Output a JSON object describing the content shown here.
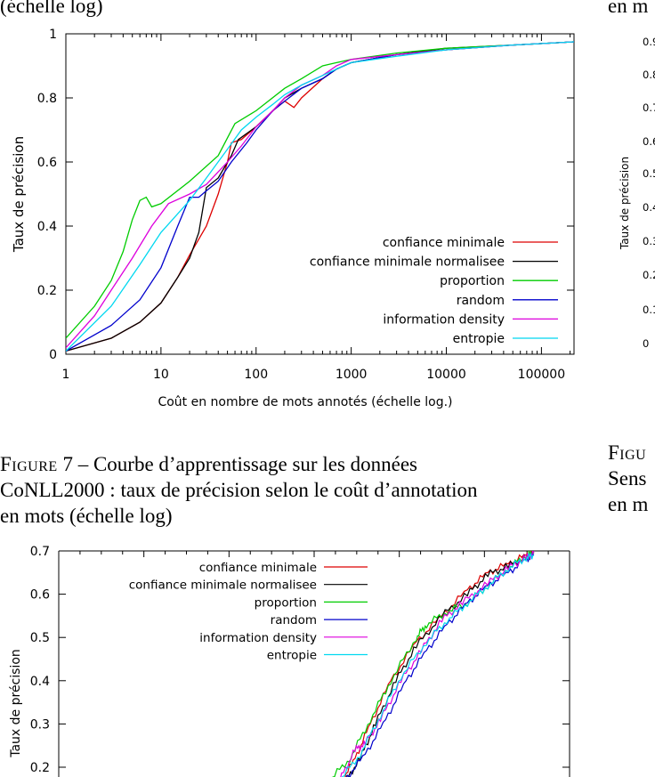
{
  "top_left_cut": "(échelle log)",
  "top_right_cut": "en m",
  "figure7_caption": {
    "label": "Figure",
    "number": "7",
    "line1": "– Courbe d’apprentissage sur les données",
    "line2": "CoNLL2000 : taux de précision selon le coût d’annotation",
    "line3": "en mots (échelle log)"
  },
  "right_caption_cut": {
    "label": "Figu",
    "line2": "Sens",
    "line3": "en m"
  },
  "chart_data": [
    {
      "type": "line",
      "title": "",
      "xlabel": "Coût en nombre de mots annotés (échelle log.)",
      "ylabel": "Taux de précision",
      "xscale": "log",
      "xlim": [
        1,
        220000
      ],
      "ylim": [
        0,
        1
      ],
      "xticks": [
        1,
        10,
        100,
        1000,
        10000,
        100000
      ],
      "xtick_labels": [
        "1",
        "10",
        "100",
        "1000",
        "10000",
        "100000"
      ],
      "yticks": [
        0,
        0.2,
        0.4,
        0.6,
        0.8,
        1
      ],
      "ytick_labels": [
        "0",
        "0.2",
        "0.4",
        "0.6",
        "0.8",
        "1"
      ],
      "legend_position": "bottom-right",
      "series": [
        {
          "name": "confiance minimale",
          "color": "#dd0000",
          "points": [
            [
              1,
              0.01
            ],
            [
              3,
              0.05
            ],
            [
              6,
              0.1
            ],
            [
              10,
              0.16
            ],
            [
              15,
              0.24
            ],
            [
              20,
              0.31
            ],
            [
              30,
              0.4
            ],
            [
              40,
              0.5
            ],
            [
              50,
              0.6
            ],
            [
              55,
              0.66
            ],
            [
              70,
              0.67
            ],
            [
              100,
              0.71
            ],
            [
              150,
              0.76
            ],
            [
              200,
              0.79
            ],
            [
              250,
              0.77
            ],
            [
              300,
              0.8
            ],
            [
              500,
              0.86
            ],
            [
              700,
              0.89
            ],
            [
              1000,
              0.91
            ],
            [
              3000,
              0.935
            ],
            [
              10000,
              0.95
            ],
            [
              50000,
              0.965
            ],
            [
              220000,
              0.975
            ]
          ]
        },
        {
          "name": "confiance minimale normalisee",
          "color": "#000000",
          "points": [
            [
              1,
              0.01
            ],
            [
              3,
              0.05
            ],
            [
              6,
              0.1
            ],
            [
              10,
              0.16
            ],
            [
              15,
              0.24
            ],
            [
              20,
              0.3
            ],
            [
              25,
              0.38
            ],
            [
              30,
              0.52
            ],
            [
              40,
              0.55
            ],
            [
              55,
              0.62
            ],
            [
              65,
              0.67
            ],
            [
              100,
              0.71
            ],
            [
              150,
              0.76
            ],
            [
              200,
              0.8
            ],
            [
              300,
              0.83
            ],
            [
              500,
              0.86
            ],
            [
              700,
              0.89
            ],
            [
              1000,
              0.91
            ],
            [
              3000,
              0.935
            ],
            [
              10000,
              0.955
            ],
            [
              50000,
              0.965
            ],
            [
              220000,
              0.975
            ]
          ]
        },
        {
          "name": "proportion",
          "color": "#00cc00",
          "points": [
            [
              1,
              0.05
            ],
            [
              2,
              0.15
            ],
            [
              3,
              0.23
            ],
            [
              4,
              0.32
            ],
            [
              5,
              0.42
            ],
            [
              6,
              0.48
            ],
            [
              7,
              0.49
            ],
            [
              8,
              0.46
            ],
            [
              10,
              0.47
            ],
            [
              20,
              0.54
            ],
            [
              40,
              0.62
            ],
            [
              60,
              0.72
            ],
            [
              100,
              0.76
            ],
            [
              200,
              0.83
            ],
            [
              300,
              0.86
            ],
            [
              500,
              0.9
            ],
            [
              700,
              0.91
            ],
            [
              1000,
              0.92
            ],
            [
              3000,
              0.94
            ],
            [
              10000,
              0.955
            ],
            [
              50000,
              0.965
            ],
            [
              220000,
              0.975
            ]
          ]
        },
        {
          "name": "random",
          "color": "#0000cc",
          "points": [
            [
              1,
              0.01
            ],
            [
              3,
              0.09
            ],
            [
              6,
              0.17
            ],
            [
              10,
              0.27
            ],
            [
              15,
              0.4
            ],
            [
              20,
              0.49
            ],
            [
              25,
              0.49
            ],
            [
              30,
              0.51
            ],
            [
              40,
              0.54
            ],
            [
              55,
              0.6
            ],
            [
              80,
              0.66
            ],
            [
              100,
              0.7
            ],
            [
              150,
              0.76
            ],
            [
              200,
              0.79
            ],
            [
              300,
              0.83
            ],
            [
              500,
              0.86
            ],
            [
              700,
              0.89
            ],
            [
              1000,
              0.91
            ],
            [
              3000,
              0.935
            ],
            [
              10000,
              0.95
            ],
            [
              50000,
              0.965
            ],
            [
              220000,
              0.975
            ]
          ]
        },
        {
          "name": "information density",
          "color": "#dd00dd",
          "points": [
            [
              1,
              0.02
            ],
            [
              2,
              0.12
            ],
            [
              3,
              0.2
            ],
            [
              5,
              0.3
            ],
            [
              8,
              0.4
            ],
            [
              12,
              0.47
            ],
            [
              20,
              0.5
            ],
            [
              30,
              0.53
            ],
            [
              50,
              0.6
            ],
            [
              70,
              0.65
            ],
            [
              100,
              0.71
            ],
            [
              150,
              0.76
            ],
            [
              200,
              0.8
            ],
            [
              300,
              0.84
            ],
            [
              500,
              0.87
            ],
            [
              700,
              0.9
            ],
            [
              1000,
              0.92
            ],
            [
              3000,
              0.935
            ],
            [
              10000,
              0.95
            ],
            [
              50000,
              0.965
            ],
            [
              220000,
              0.975
            ]
          ]
        },
        {
          "name": "entropie",
          "color": "#00d8f0",
          "points": [
            [
              1,
              0.01
            ],
            [
              3,
              0.15
            ],
            [
              6,
              0.28
            ],
            [
              10,
              0.38
            ],
            [
              20,
              0.48
            ],
            [
              30,
              0.55
            ],
            [
              50,
              0.64
            ],
            [
              70,
              0.7
            ],
            [
              100,
              0.74
            ],
            [
              150,
              0.78
            ],
            [
              200,
              0.81
            ],
            [
              300,
              0.84
            ],
            [
              500,
              0.87
            ],
            [
              700,
              0.89
            ],
            [
              1000,
              0.91
            ],
            [
              3000,
              0.93
            ],
            [
              10000,
              0.95
            ],
            [
              50000,
              0.965
            ],
            [
              220000,
              0.975
            ]
          ]
        }
      ]
    },
    {
      "type": "line",
      "title": "",
      "xlabel": "",
      "ylabel": "Taux de précision",
      "ylim": [
        0.17,
        0.7
      ],
      "yticks": [
        0.2,
        0.3,
        0.4,
        0.5,
        0.6,
        0.7
      ],
      "ytick_labels": [
        "0.2",
        "0.3",
        "0.4",
        "0.5",
        "0.6",
        "0.7"
      ],
      "legend_position": "top-left",
      "series": [
        {
          "name": "confiance minimale",
          "color": "#dd0000",
          "points": [
            [
              0.552,
              0.165
            ],
            [
              0.58,
              0.22
            ],
            [
              0.61,
              0.3
            ],
            [
              0.65,
              0.4
            ],
            [
              0.7,
              0.49
            ],
            [
              0.75,
              0.55
            ],
            [
              0.8,
              0.61
            ],
            [
              0.84,
              0.65
            ],
            [
              0.88,
              0.67
            ],
            [
              0.915,
              0.69
            ],
            [
              0.93,
              0.695
            ]
          ]
        },
        {
          "name": "confiance minimale normalisee",
          "color": "#000000",
          "points": [
            [
              0.56,
              0.165
            ],
            [
              0.59,
              0.22
            ],
            [
              0.62,
              0.3
            ],
            [
              0.66,
              0.4
            ],
            [
              0.7,
              0.48
            ],
            [
              0.75,
              0.55
            ],
            [
              0.8,
              0.6
            ],
            [
              0.84,
              0.645
            ],
            [
              0.88,
              0.665
            ],
            [
              0.915,
              0.685
            ],
            [
              0.93,
              0.695
            ]
          ]
        },
        {
          "name": "proportion",
          "color": "#00cc00",
          "points": [
            [
              0.53,
              0.17
            ],
            [
              0.57,
              0.22
            ],
            [
              0.61,
              0.31
            ],
            [
              0.65,
              0.4
            ],
            [
              0.7,
              0.5
            ],
            [
              0.72,
              0.53
            ],
            [
              0.76,
              0.56
            ],
            [
              0.8,
              0.58
            ],
            [
              0.84,
              0.62
            ],
            [
              0.88,
              0.66
            ],
            [
              0.915,
              0.69
            ],
            [
              0.93,
              0.695
            ]
          ]
        },
        {
          "name": "random",
          "color": "#0000cc",
          "points": [
            [
              0.56,
              0.17
            ],
            [
              0.6,
              0.23
            ],
            [
              0.64,
              0.31
            ],
            [
              0.68,
              0.4
            ],
            [
              0.72,
              0.47
            ],
            [
              0.76,
              0.53
            ],
            [
              0.8,
              0.58
            ],
            [
              0.84,
              0.62
            ],
            [
              0.88,
              0.65
            ],
            [
              0.915,
              0.68
            ],
            [
              0.93,
              0.69
            ]
          ]
        },
        {
          "name": "information density",
          "color": "#dd00dd",
          "points": [
            [
              0.55,
              0.17
            ],
            [
              0.58,
              0.24
            ],
            [
              0.6,
              0.255
            ],
            [
              0.63,
              0.31
            ],
            [
              0.67,
              0.4
            ],
            [
              0.71,
              0.47
            ],
            [
              0.75,
              0.54
            ],
            [
              0.79,
              0.58
            ],
            [
              0.84,
              0.625
            ],
            [
              0.88,
              0.66
            ],
            [
              0.915,
              0.685
            ],
            [
              0.93,
              0.695
            ]
          ]
        },
        {
          "name": "entropie",
          "color": "#00d8f0",
          "points": [
            [
              0.55,
              0.17
            ],
            [
              0.59,
              0.23
            ],
            [
              0.63,
              0.32
            ],
            [
              0.67,
              0.41
            ],
            [
              0.72,
              0.49
            ],
            [
              0.76,
              0.54
            ],
            [
              0.8,
              0.58
            ],
            [
              0.84,
              0.62
            ],
            [
              0.88,
              0.66
            ],
            [
              0.915,
              0.685
            ],
            [
              0.93,
              0.69
            ]
          ]
        }
      ]
    },
    {
      "type": "line",
      "title": "",
      "xlabel": "",
      "ylabel": "Taux de précision",
      "ytick_labels": [
        "0.9",
        "0.8",
        "0.7",
        "0.6",
        "0.5",
        "0.4",
        "0.3",
        "0.2",
        "0.1",
        "0"
      ],
      "series": []
    }
  ]
}
